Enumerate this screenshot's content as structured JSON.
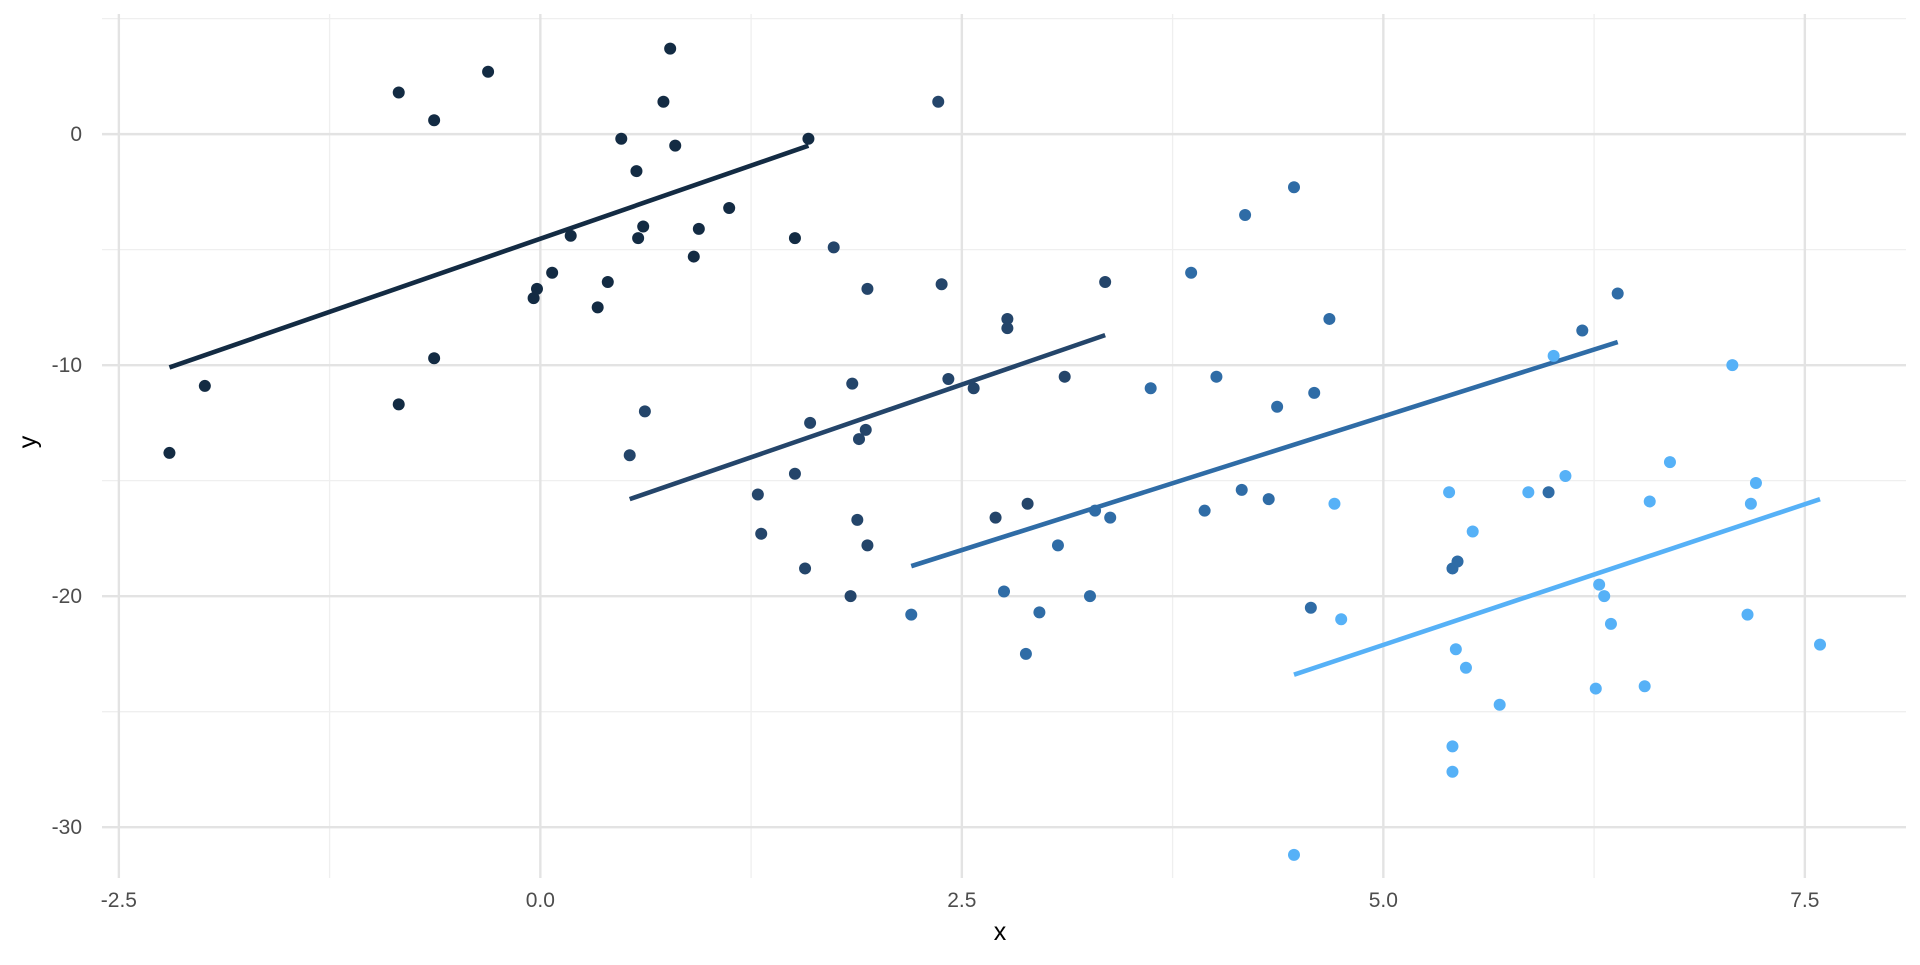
{
  "chart_data": {
    "type": "scatter",
    "title": "",
    "xlabel": "x",
    "ylabel": "y",
    "xlim": [
      -2.6,
      8.1
    ],
    "ylim": [
      -32.2,
      5.2
    ],
    "x_ticks": [
      -2.5,
      0.0,
      2.5,
      5.0,
      7.5
    ],
    "x_tick_labels": [
      "-2.5",
      "0.0",
      "2.5",
      "5.0",
      "7.5"
    ],
    "y_ticks": [
      -30,
      -20,
      -10,
      0
    ],
    "y_tick_labels": [
      "-30",
      "-20",
      "-10",
      "0"
    ],
    "grid": true,
    "legend": "none",
    "colors": [
      "#132b43",
      "#24456a",
      "#2f6ca6",
      "#56b1f7"
    ],
    "series": [
      {
        "color": "#132b43",
        "points": [
          [
            -2.2,
            -13.8
          ],
          [
            -1.99,
            -10.9
          ],
          [
            -0.84,
            1.8
          ],
          [
            -0.84,
            -11.7
          ],
          [
            -0.63,
            0.6
          ],
          [
            -0.63,
            -9.7
          ],
          [
            -0.31,
            2.7
          ],
          [
            -0.04,
            -7.1
          ],
          [
            -0.02,
            -6.7
          ],
          [
            0.07,
            -6.0
          ],
          [
            0.18,
            -4.4
          ],
          [
            0.34,
            -7.5
          ],
          [
            0.4,
            -6.4
          ],
          [
            0.48,
            -0.2
          ],
          [
            0.57,
            -1.6
          ],
          [
            0.58,
            -4.5
          ],
          [
            0.61,
            -4.0
          ],
          [
            0.73,
            1.4
          ],
          [
            0.77,
            3.7
          ],
          [
            0.8,
            -0.5
          ],
          [
            0.91,
            -5.3
          ],
          [
            0.94,
            -4.1
          ],
          [
            1.12,
            -3.2
          ],
          [
            1.51,
            -4.5
          ],
          [
            1.59,
            -0.2
          ]
        ],
        "fit": [
          [
            -2.2,
            -10.1
          ],
          [
            1.59,
            -0.5
          ]
        ]
      },
      {
        "color": "#24456a",
        "points": [
          [
            0.53,
            -13.9
          ],
          [
            0.62,
            -12.0
          ],
          [
            1.29,
            -15.6
          ],
          [
            1.31,
            -17.3
          ],
          [
            1.51,
            -14.7
          ],
          [
            1.57,
            -18.8
          ],
          [
            1.6,
            -12.5
          ],
          [
            1.74,
            -4.9
          ],
          [
            1.84,
            -20.0
          ],
          [
            1.85,
            -10.8
          ],
          [
            1.88,
            -16.7
          ],
          [
            1.89,
            -13.2
          ],
          [
            1.93,
            -12.8
          ],
          [
            1.94,
            -17.8
          ],
          [
            1.94,
            -6.7
          ],
          [
            2.36,
            1.4
          ],
          [
            2.38,
            -6.5
          ],
          [
            2.42,
            -10.6
          ],
          [
            2.57,
            -11.0
          ],
          [
            2.7,
            -16.6
          ],
          [
            2.77,
            -8.0
          ],
          [
            2.77,
            -8.4
          ],
          [
            2.89,
            -16.0
          ],
          [
            3.11,
            -10.5
          ],
          [
            3.35,
            -6.4
          ]
        ],
        "fit": [
          [
            0.53,
            -15.8
          ],
          [
            3.35,
            -8.7
          ]
        ]
      },
      {
        "color": "#2f6ca6",
        "points": [
          [
            2.2,
            -20.8
          ],
          [
            2.75,
            -19.8
          ],
          [
            2.88,
            -22.5
          ],
          [
            2.96,
            -20.7
          ],
          [
            3.07,
            -17.8
          ],
          [
            3.26,
            -20.0
          ],
          [
            3.29,
            -16.3
          ],
          [
            3.38,
            -16.6
          ],
          [
            3.62,
            -11.0
          ],
          [
            3.86,
            -6.0
          ],
          [
            3.94,
            -16.3
          ],
          [
            4.01,
            -10.5
          ],
          [
            4.16,
            -15.4
          ],
          [
            4.18,
            -3.5
          ],
          [
            4.32,
            -15.8
          ],
          [
            4.37,
            -11.8
          ],
          [
            4.47,
            -2.3
          ],
          [
            4.57,
            -20.5
          ],
          [
            4.59,
            -11.2
          ],
          [
            4.68,
            -8.0
          ],
          [
            5.41,
            -18.8
          ],
          [
            5.44,
            -18.5
          ],
          [
            5.98,
            -15.5
          ],
          [
            6.18,
            -8.5
          ],
          [
            6.39,
            -6.9
          ]
        ],
        "fit": [
          [
            2.2,
            -18.7
          ],
          [
            6.39,
            -9.0
          ]
        ]
      },
      {
        "color": "#56b1f7",
        "points": [
          [
            4.47,
            -31.2
          ],
          [
            4.71,
            -16.0
          ],
          [
            4.75,
            -21.0
          ],
          [
            5.39,
            -15.5
          ],
          [
            5.41,
            -26.5
          ],
          [
            5.41,
            -27.6
          ],
          [
            5.43,
            -22.3
          ],
          [
            5.49,
            -23.1
          ],
          [
            5.53,
            -17.2
          ],
          [
            5.69,
            -24.7
          ],
          [
            5.86,
            -15.5
          ],
          [
            6.01,
            -9.6
          ],
          [
            6.08,
            -14.8
          ],
          [
            6.26,
            -24.0
          ],
          [
            6.28,
            -19.5
          ],
          [
            6.31,
            -20.0
          ],
          [
            6.35,
            -21.2
          ],
          [
            6.55,
            -23.9
          ],
          [
            6.58,
            -15.9
          ],
          [
            6.7,
            -14.2
          ],
          [
            7.07,
            -10.0
          ],
          [
            7.16,
            -20.8
          ],
          [
            7.18,
            -16.0
          ],
          [
            7.21,
            -15.1
          ],
          [
            7.59,
            -22.1
          ]
        ],
        "fit": [
          [
            4.47,
            -23.4
          ],
          [
            7.59,
            -15.8
          ]
        ]
      }
    ]
  }
}
